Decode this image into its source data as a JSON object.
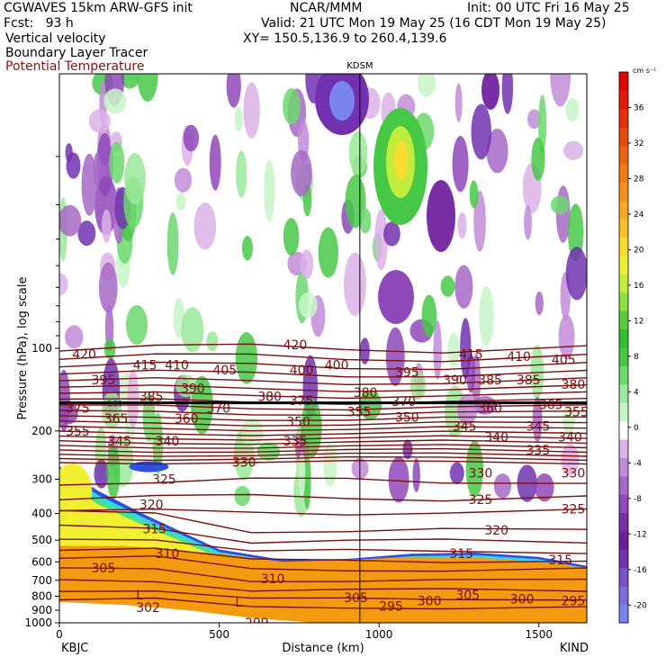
{
  "header": {
    "model": "CGWAVES 15km ARW-GFS init",
    "org": "NCAR/MMM",
    "init": "Init: 00 UTC Fri 16 May 25",
    "fcst": "Fcst:   93 h",
    "valid": "Valid: 21 UTC Mon 19 May 25 (16 CDT Mon 19 May 25)",
    "field1": "Vertical velocity",
    "field2": "Boundary Layer Tracer",
    "field3": "Potential Temperature",
    "xy": "XY= 150.5,136.9 to 260.4,139.6"
  },
  "colors": {
    "theta": "#7a0f0f",
    "pbl_outer": "#3050e0",
    "pbl_cyan": "#30d8e8",
    "pbl_green": "#50e080",
    "pbl_yellow": "#f0f030",
    "pbl_orange": "#f39a10",
    "terrain": "#ffffff"
  },
  "chart_data": {
    "type": "heatmap",
    "title": "",
    "xlabel": "Distance (km)",
    "ylabel": "Pressure (hPa), log scale",
    "x_ticks": [
      0,
      500,
      1000,
      1500
    ],
    "xlim": [
      0,
      1650
    ],
    "y_ticks": [
      100,
      200,
      300,
      400,
      500,
      600,
      700,
      800,
      900,
      1000
    ],
    "ylim": [
      1000,
      10
    ],
    "yscale": "log",
    "vertical_marker": {
      "label": "KDSM",
      "x": 940
    },
    "x_endpoints": {
      "left": "KBJC",
      "right": "KIND"
    },
    "tropopause_label": "160",
    "colorbar": {
      "unit": "cm s⁻¹",
      "levels": [
        -22,
        -20,
        -18,
        -16,
        -14,
        -12,
        -10,
        -8,
        -6,
        -4,
        -2,
        2,
        4,
        6,
        8,
        10,
        12,
        14,
        16,
        18,
        20,
        22,
        24,
        26,
        28,
        30,
        32,
        34,
        36,
        38,
        40
      ],
      "tick_labels": [
        "-20",
        "-16",
        "-12",
        "-8",
        "-4",
        "0",
        "4",
        "8",
        "12",
        "16",
        "20",
        "24",
        "28",
        "32",
        "36"
      ],
      "colors": [
        "#7a84f0",
        "#7e6cdc",
        "#7a52c8",
        "#7232b0",
        "#6a1e9c",
        "#7a2ea6",
        "#8f48b8",
        "#a868c8",
        "#c28cd8",
        "#dcb2e8",
        "#ffffff",
        "#c8f5c8",
        "#9ae89a",
        "#6cd86c",
        "#46c846",
        "#30c030",
        "#58cc3c",
        "#8ce040",
        "#c0ec3c",
        "#eef038",
        "#f8dc30",
        "#f8c028",
        "#f6a820",
        "#f49218",
        "#f07c12",
        "#ec640e",
        "#e84a0c",
        "#e6300a",
        "#e41a08",
        "#e20606"
      ]
    },
    "theta_labels": [
      {
        "t": "420",
        "x": 40,
        "p": 105
      },
      {
        "t": "415",
        "x": 230,
        "p": 115
      },
      {
        "t": "410",
        "x": 330,
        "p": 115
      },
      {
        "t": "405",
        "x": 480,
        "p": 120
      },
      {
        "t": "400",
        "x": 720,
        "p": 120
      },
      {
        "t": "420",
        "x": 700,
        "p": 97
      },
      {
        "t": "400",
        "x": 830,
        "p": 115
      },
      {
        "t": "395",
        "x": 1050,
        "p": 122
      },
      {
        "t": "390",
        "x": 1200,
        "p": 130
      },
      {
        "t": "385",
        "x": 1310,
        "p": 130
      },
      {
        "t": "385",
        "x": 1430,
        "p": 130
      },
      {
        "t": "380",
        "x": 1570,
        "p": 135
      },
      {
        "t": "415",
        "x": 1250,
        "p": 105
      },
      {
        "t": "410",
        "x": 1400,
        "p": 107
      },
      {
        "t": "405",
        "x": 1540,
        "p": 110
      },
      {
        "t": "395",
        "x": 100,
        "p": 130
      },
      {
        "t": "390",
        "x": 380,
        "p": 140
      },
      {
        "t": "385",
        "x": 250,
        "p": 150
      },
      {
        "t": "380",
        "x": 620,
        "p": 150
      },
      {
        "t": "375",
        "x": 720,
        "p": 155
      },
      {
        "t": "380",
        "x": 920,
        "p": 145
      },
      {
        "t": "370",
        "x": 1040,
        "p": 156
      },
      {
        "t": "365",
        "x": 1500,
        "p": 160
      },
      {
        "t": "360",
        "x": 1310,
        "p": 165
      },
      {
        "t": "370",
        "x": 460,
        "p": 165
      },
      {
        "t": "375",
        "x": 20,
        "p": 165
      },
      {
        "t": "365",
        "x": 140,
        "p": 180
      },
      {
        "t": "360",
        "x": 360,
        "p": 180
      },
      {
        "t": "355",
        "x": 900,
        "p": 170
      },
      {
        "t": "350",
        "x": 1050,
        "p": 178
      },
      {
        "t": "350",
        "x": 710,
        "p": 185
      },
      {
        "t": "345",
        "x": 1230,
        "p": 192
      },
      {
        "t": "345",
        "x": 1460,
        "p": 192
      },
      {
        "t": "355",
        "x": 1580,
        "p": 170
      },
      {
        "t": "355",
        "x": 20,
        "p": 200
      },
      {
        "t": "345",
        "x": 150,
        "p": 218
      },
      {
        "t": "340",
        "x": 300,
        "p": 218
      },
      {
        "t": "335",
        "x": 700,
        "p": 218
      },
      {
        "t": "340",
        "x": 1330,
        "p": 210
      },
      {
        "t": "340",
        "x": 1560,
        "p": 210
      },
      {
        "t": "335",
        "x": 1460,
        "p": 235
      },
      {
        "t": "330",
        "x": 540,
        "p": 260
      },
      {
        "t": "330",
        "x": 1280,
        "p": 285
      },
      {
        "t": "330",
        "x": 1570,
        "p": 285
      },
      {
        "t": "325",
        "x": 290,
        "p": 300
      },
      {
        "t": "325",
        "x": 1280,
        "p": 355
      },
      {
        "t": "325",
        "x": 1570,
        "p": 385
      },
      {
        "t": "320",
        "x": 250,
        "p": 370
      },
      {
        "t": "320",
        "x": 1330,
        "p": 460
      },
      {
        "t": "315",
        "x": 260,
        "p": 455
      },
      {
        "t": "315",
        "x": 1220,
        "p": 560
      },
      {
        "t": "315",
        "x": 1530,
        "p": 590
      },
      {
        "t": "310",
        "x": 300,
        "p": 560
      },
      {
        "t": "310",
        "x": 630,
        "p": 690
      },
      {
        "t": "305",
        "x": 100,
        "p": 630
      },
      {
        "t": "305",
        "x": 890,
        "p": 810
      },
      {
        "t": "305",
        "x": 1240,
        "p": 790
      },
      {
        "t": "300",
        "x": 1120,
        "p": 830
      },
      {
        "t": "300",
        "x": 1410,
        "p": 820
      },
      {
        "t": "295",
        "x": 1000,
        "p": 870
      },
      {
        "t": "295",
        "x": 1570,
        "p": 830
      },
      {
        "t": "302",
        "x": 240,
        "p": 880
      },
      {
        "t": "299",
        "x": 580,
        "p": 1000
      },
      {
        "t": "L",
        "x": 240,
        "p": 790
      },
      {
        "t": "L",
        "x": 550,
        "p": 840
      }
    ]
  }
}
